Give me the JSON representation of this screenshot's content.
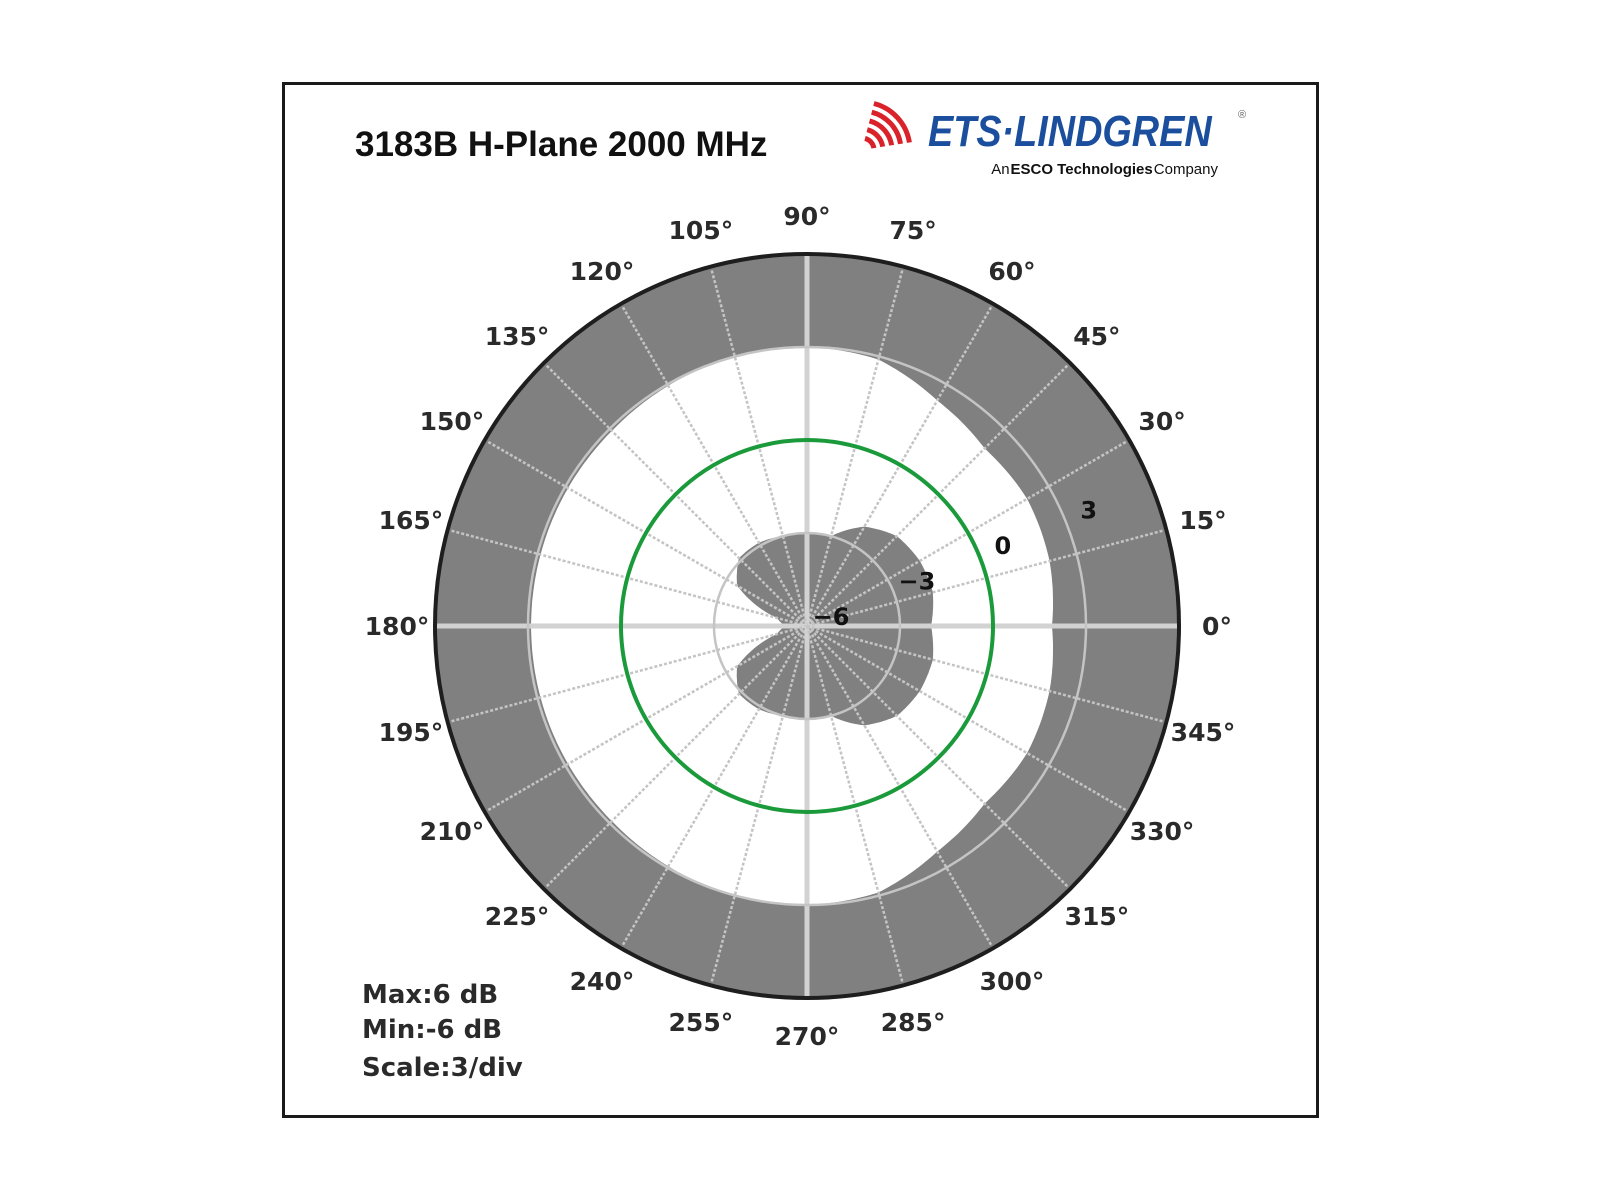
{
  "chart_data": {
    "type": "polar",
    "title": "3183B H-Plane 2000 MHz",
    "angle_unit": "degrees",
    "angle_ticks": [
      "0°",
      "15°",
      "30°",
      "45°",
      "60°",
      "75°",
      "90°",
      "105°",
      "120°",
      "135°",
      "150°",
      "165°",
      "180°",
      "195°",
      "210°",
      "225°",
      "240°",
      "255°",
      "270°",
      "285°",
      "300°",
      "315°",
      "330°",
      "345°"
    ],
    "radial_ticks": [
      -6,
      -3,
      0,
      3
    ],
    "radial_tick_labels": [
      "−6",
      "−3",
      "0",
      "3"
    ],
    "rlim": [
      -6,
      6
    ],
    "grid": true,
    "angles": [
      0,
      15,
      30,
      45,
      60,
      75,
      90,
      105,
      120,
      135,
      150,
      165,
      180,
      195,
      210,
      225,
      240,
      255,
      270,
      285,
      300,
      315,
      330,
      345
    ],
    "inner_fill_db": [
      -2.0,
      -1.8,
      -1.8,
      -1.9,
      -2.3,
      -3.0,
      -3.0,
      -3.0,
      -2.9,
      -2.9,
      -3.4,
      -5.0,
      -5.3,
      -5.0,
      -3.4,
      -2.9,
      -2.9,
      -3.0,
      -3.0,
      -3.0,
      -2.3,
      -1.9,
      -1.8,
      -1.8
    ],
    "outer_fill_start_db": [
      1.9,
      2.1,
      2.2,
      2.1,
      2.4,
      2.9,
      3.0,
      3.0,
      2.95,
      2.9,
      2.9,
      2.9,
      2.9,
      2.9,
      2.9,
      2.9,
      2.95,
      3.0,
      3.0,
      2.9,
      2.4,
      2.1,
      2.2,
      2.1
    ],
    "reference_circle_db": 0,
    "annotations": [
      "Max:6 dB",
      "Min:-6 dB",
      "Scale:3/div"
    ],
    "colors": {
      "fill": "#808080",
      "reference_circle": "#1a9a3a",
      "grid": "#c4c4c4",
      "outline": "#1e1e1e"
    }
  },
  "logo": {
    "name": "ETS·LINDGREN",
    "registered": "®",
    "tagline_pre": "An ",
    "tagline_bold": "ESCO Technologies",
    "tagline_post": " Company",
    "colors": {
      "text": "#1b4f9e",
      "arcs": "#d9222a"
    }
  }
}
